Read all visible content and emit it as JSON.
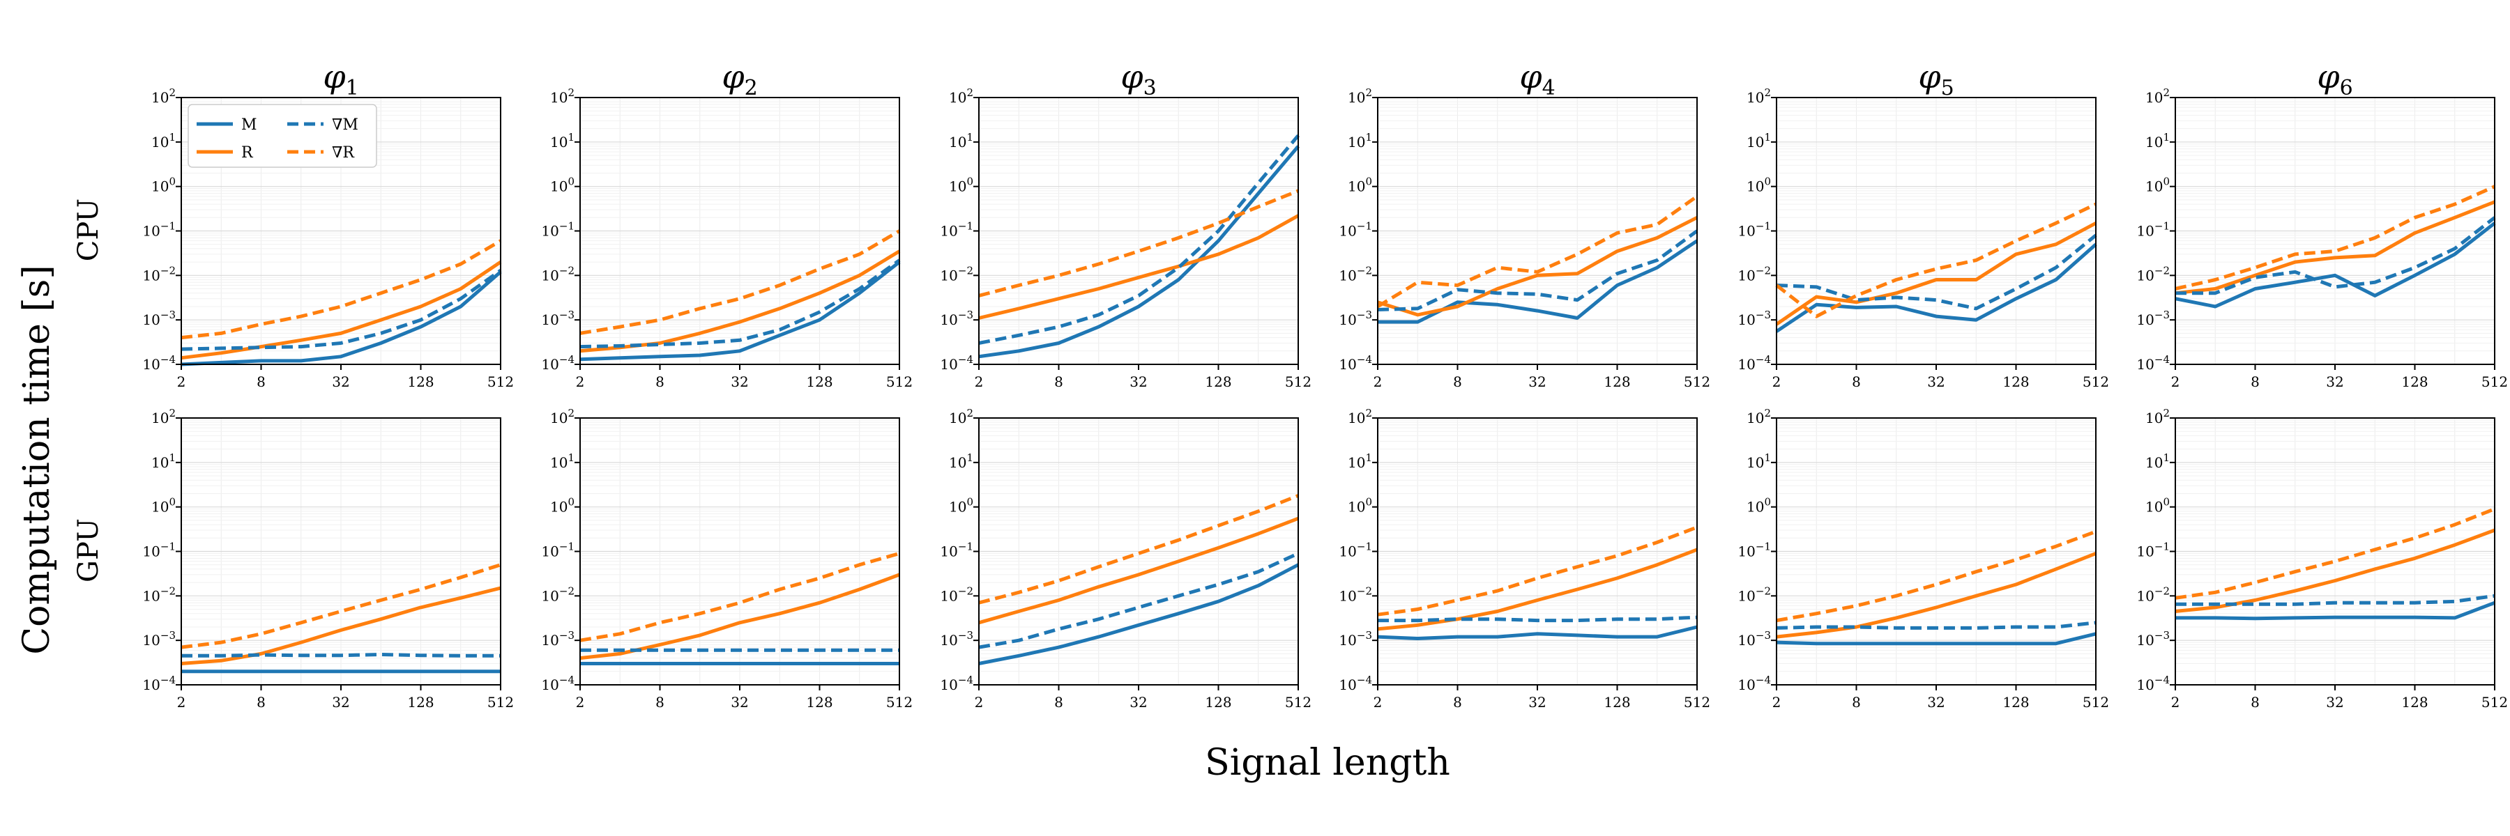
{
  "chart_data": {
    "type": "line",
    "ylabel": "Computation time [s]",
    "xlabel": "Signal length",
    "row_labels": [
      "CPU",
      "GPU"
    ],
    "column_titles": [
      "φ1",
      "φ2",
      "φ3",
      "φ4",
      "φ5",
      "φ6"
    ],
    "x_ticks": [
      "2",
      "8",
      "32",
      "128",
      "512"
    ],
    "y_ticks": [
      "10^-4",
      "10^-3",
      "10^-2",
      "10^-1",
      "10^0",
      "10^1",
      "10^2"
    ],
    "x_scale": "log2",
    "y_scale": "log10",
    "ylim": [
      0.0001,
      100
    ],
    "x": [
      2,
      4,
      8,
      16,
      32,
      64,
      128,
      256,
      512
    ],
    "grid": true,
    "legend": {
      "placement": "top-left of first CPU panel",
      "entries": [
        {
          "label": "M",
          "style": "solid",
          "color": "#1f77b4"
        },
        {
          "label": "R",
          "style": "solid",
          "color": "#ff7f0e"
        },
        {
          "label": "∇M",
          "style": "dashed",
          "color": "#1f77b4"
        },
        {
          "label": "∇R",
          "style": "dashed",
          "color": "#ff7f0e"
        }
      ]
    },
    "colors": {
      "M": "#1f77b4",
      "R": "#ff7f0e"
    },
    "panels": [
      {
        "row": "CPU",
        "col": "φ1",
        "series": {
          "M": [
            0.0001,
            0.00011,
            0.00012,
            0.00012,
            0.00015,
            0.0003,
            0.0007,
            0.002,
            0.012
          ],
          "R": [
            0.00014,
            0.00018,
            0.00025,
            0.00035,
            0.0005,
            0.001,
            0.002,
            0.005,
            0.02
          ],
          "∇M": [
            0.00022,
            0.00023,
            0.00024,
            0.00025,
            0.0003,
            0.0005,
            0.001,
            0.003,
            0.013
          ],
          "∇R": [
            0.0004,
            0.0005,
            0.0008,
            0.0012,
            0.002,
            0.004,
            0.008,
            0.018,
            0.06
          ]
        }
      },
      {
        "row": "CPU",
        "col": "φ2",
        "series": {
          "M": [
            0.00013,
            0.00014,
            0.00015,
            0.00016,
            0.0002,
            0.00045,
            0.001,
            0.004,
            0.02
          ],
          "R": [
            0.0002,
            0.00024,
            0.0003,
            0.0005,
            0.0009,
            0.0018,
            0.004,
            0.01,
            0.035
          ],
          "∇M": [
            0.00025,
            0.00026,
            0.00028,
            0.0003,
            0.00035,
            0.0006,
            0.0015,
            0.005,
            0.022
          ],
          "∇R": [
            0.0005,
            0.0007,
            0.001,
            0.0018,
            0.003,
            0.006,
            0.014,
            0.03,
            0.1
          ]
        }
      },
      {
        "row": "CPU",
        "col": "φ3",
        "series": {
          "M": [
            0.00015,
            0.0002,
            0.0003,
            0.0007,
            0.002,
            0.008,
            0.06,
            0.7,
            8
          ],
          "R": [
            0.0011,
            0.0018,
            0.003,
            0.005,
            0.009,
            0.016,
            0.03,
            0.07,
            0.22
          ],
          "∇M": [
            0.0003,
            0.00045,
            0.0007,
            0.0013,
            0.0035,
            0.015,
            0.1,
            1.2,
            14
          ],
          "∇R": [
            0.0035,
            0.006,
            0.01,
            0.018,
            0.035,
            0.07,
            0.15,
            0.35,
            0.8
          ]
        }
      },
      {
        "row": "CPU",
        "col": "φ4",
        "series": {
          "M": [
            0.0009,
            0.0009,
            0.0025,
            0.0022,
            0.0016,
            0.0011,
            0.006,
            0.015,
            0.06
          ],
          "R": [
            0.0025,
            0.0013,
            0.002,
            0.005,
            0.01,
            0.011,
            0.035,
            0.07,
            0.2
          ],
          "∇M": [
            0.0017,
            0.0018,
            0.0048,
            0.004,
            0.0038,
            0.0028,
            0.011,
            0.022,
            0.1
          ],
          "∇R": [
            0.002,
            0.007,
            0.006,
            0.015,
            0.012,
            0.03,
            0.09,
            0.14,
            0.6
          ]
        }
      },
      {
        "row": "CPU",
        "col": "φ5",
        "series": {
          "M": [
            0.00055,
            0.0022,
            0.0019,
            0.002,
            0.0012,
            0.001,
            0.003,
            0.008,
            0.05
          ],
          "R": [
            0.0008,
            0.0033,
            0.0025,
            0.004,
            0.008,
            0.008,
            0.03,
            0.05,
            0.15
          ],
          "∇M": [
            0.006,
            0.0055,
            0.0028,
            0.0032,
            0.0028,
            0.0018,
            0.005,
            0.015,
            0.08
          ],
          "∇R": [
            0.006,
            0.0012,
            0.0035,
            0.008,
            0.014,
            0.022,
            0.06,
            0.15,
            0.4
          ]
        }
      },
      {
        "row": "CPU",
        "col": "φ6",
        "series": {
          "M": [
            0.003,
            0.002,
            0.005,
            0.007,
            0.01,
            0.0035,
            0.01,
            0.03,
            0.15
          ],
          "R": [
            0.004,
            0.005,
            0.01,
            0.02,
            0.025,
            0.028,
            0.09,
            0.2,
            0.45
          ],
          "∇M": [
            0.004,
            0.004,
            0.009,
            0.012,
            0.0055,
            0.007,
            0.015,
            0.04,
            0.2
          ],
          "∇R": [
            0.005,
            0.008,
            0.015,
            0.03,
            0.035,
            0.07,
            0.2,
            0.4,
            1.0
          ]
        }
      },
      {
        "row": "GPU",
        "col": "φ1",
        "series": {
          "M": [
            0.0002,
            0.0002,
            0.0002,
            0.0002,
            0.0002,
            0.0002,
            0.0002,
            0.0002,
            0.0002
          ],
          "R": [
            0.0003,
            0.00035,
            0.0005,
            0.0009,
            0.0017,
            0.003,
            0.0055,
            0.009,
            0.015
          ],
          "∇M": [
            0.00045,
            0.00045,
            0.00047,
            0.00046,
            0.00046,
            0.00048,
            0.00046,
            0.00045,
            0.00045
          ],
          "∇R": [
            0.0007,
            0.0009,
            0.0014,
            0.0025,
            0.0045,
            0.008,
            0.014,
            0.026,
            0.05
          ]
        }
      },
      {
        "row": "GPU",
        "col": "φ2",
        "series": {
          "M": [
            0.0003,
            0.0003,
            0.0003,
            0.0003,
            0.0003,
            0.0003,
            0.0003,
            0.0003,
            0.0003
          ],
          "R": [
            0.0004,
            0.0005,
            0.0008,
            0.0013,
            0.0025,
            0.004,
            0.007,
            0.014,
            0.03
          ],
          "∇M": [
            0.0006,
            0.0006,
            0.0006,
            0.0006,
            0.0006,
            0.0006,
            0.0006,
            0.0006,
            0.0006
          ],
          "∇R": [
            0.001,
            0.0014,
            0.0025,
            0.004,
            0.007,
            0.014,
            0.025,
            0.05,
            0.09
          ]
        }
      },
      {
        "row": "GPU",
        "col": "φ3",
        "series": {
          "M": [
            0.0003,
            0.00045,
            0.0007,
            0.0012,
            0.0022,
            0.004,
            0.0075,
            0.017,
            0.05
          ],
          "R": [
            0.0025,
            0.0045,
            0.008,
            0.016,
            0.03,
            0.06,
            0.12,
            0.25,
            0.55
          ],
          "∇M": [
            0.0007,
            0.001,
            0.0018,
            0.003,
            0.0055,
            0.01,
            0.018,
            0.035,
            0.09
          ],
          "∇R": [
            0.007,
            0.012,
            0.022,
            0.045,
            0.09,
            0.18,
            0.38,
            0.8,
            1.8
          ]
        }
      },
      {
        "row": "GPU",
        "col": "φ4",
        "series": {
          "M": [
            0.0012,
            0.0011,
            0.0012,
            0.0012,
            0.0014,
            0.0013,
            0.0012,
            0.0012,
            0.002
          ],
          "R": [
            0.0018,
            0.0022,
            0.003,
            0.0045,
            0.008,
            0.014,
            0.025,
            0.05,
            0.11
          ],
          "∇M": [
            0.0028,
            0.0028,
            0.003,
            0.003,
            0.0028,
            0.0028,
            0.003,
            0.003,
            0.0033
          ],
          "∇R": [
            0.0038,
            0.005,
            0.008,
            0.013,
            0.025,
            0.045,
            0.08,
            0.16,
            0.35
          ]
        }
      },
      {
        "row": "GPU",
        "col": "φ5",
        "series": {
          "M": [
            0.0009,
            0.00085,
            0.00085,
            0.00085,
            0.00085,
            0.00085,
            0.00085,
            0.00085,
            0.0014
          ],
          "R": [
            0.0012,
            0.0015,
            0.002,
            0.0032,
            0.0055,
            0.01,
            0.018,
            0.04,
            0.09
          ],
          "∇M": [
            0.0019,
            0.002,
            0.002,
            0.0019,
            0.0019,
            0.0019,
            0.002,
            0.002,
            0.0025
          ],
          "∇R": [
            0.0028,
            0.004,
            0.006,
            0.01,
            0.018,
            0.035,
            0.065,
            0.13,
            0.28
          ]
        }
      },
      {
        "row": "GPU",
        "col": "φ6",
        "series": {
          "M": [
            0.0032,
            0.0032,
            0.0031,
            0.0032,
            0.0033,
            0.0033,
            0.0033,
            0.0032,
            0.007
          ],
          "R": [
            0.0045,
            0.0055,
            0.008,
            0.013,
            0.022,
            0.04,
            0.07,
            0.14,
            0.3
          ],
          "∇M": [
            0.0065,
            0.0065,
            0.0065,
            0.0065,
            0.007,
            0.007,
            0.007,
            0.0075,
            0.01
          ],
          "∇R": [
            0.009,
            0.012,
            0.02,
            0.035,
            0.06,
            0.11,
            0.2,
            0.4,
            0.9
          ]
        }
      }
    ]
  }
}
